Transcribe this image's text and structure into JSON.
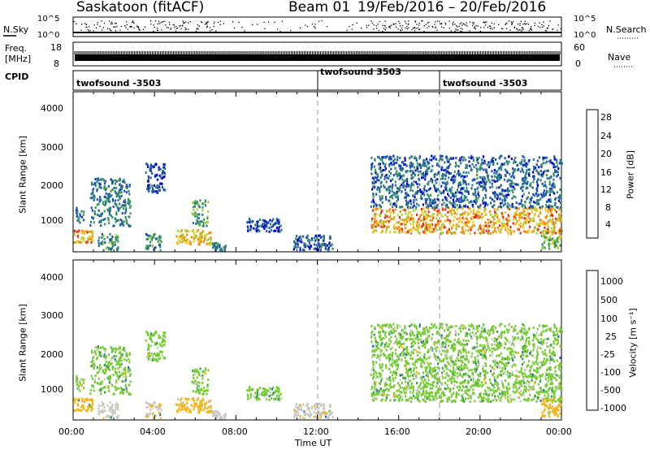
{
  "header": {
    "station": "Saskatoon (fitACF)",
    "beam": "Beam 01",
    "dates": "19/Feb/2016 – 20/Feb/2016"
  },
  "nsky_panel": {
    "left_label": "N.Sky",
    "right_label": "N.Search",
    "left_ticks": [
      "10^5",
      "10^0"
    ],
    "right_ticks": [
      "10^5",
      "10^0"
    ]
  },
  "freq_panel": {
    "left_label_1": "Freq.",
    "left_label_2": "[MHz]",
    "left_ticks": [
      "18",
      "8"
    ],
    "right_label": "Nave",
    "right_ticks": [
      "60",
      "0"
    ]
  },
  "cpid_panel": {
    "label": "CPID",
    "segments": [
      {
        "text": "twofsound -3503",
        "start_hour": 0
      },
      {
        "text": "twofsound 3503",
        "start_hour": 12
      },
      {
        "text": "twofsound -3503",
        "start_hour": 18
      }
    ]
  },
  "power_panel": {
    "ylabel": "Slant Range [km]",
    "yticks": [
      "4000",
      "3000",
      "2000",
      "1000"
    ],
    "colorbar_label": "Power [dB]",
    "colorbar_ticks": [
      "28",
      "24",
      "20",
      "16",
      "12",
      "8",
      "4"
    ],
    "colors": [
      "#0000cc",
      "#1a4fb0",
      "#2e7a8a",
      "#3a9a5a",
      "#9dd33a",
      "#f2c81e",
      "#f08a14",
      "#e8281c"
    ]
  },
  "velocity_panel": {
    "ylabel": "Slant Range [km]",
    "yticks": [
      "4000",
      "3000",
      "2000",
      "1000"
    ],
    "colorbar_label": "Velocity [m s⁻¹]",
    "colorbar_ticks": [
      "1000",
      "500",
      "100",
      "25",
      "-25",
      "-100",
      "-500",
      "-1000"
    ],
    "colors": [
      "#2233aa",
      "#2c6fb0",
      "#3a9a5a",
      "#77cc33",
      "#c8c8c4",
      "#f4b51c",
      "#f08a14",
      "#e0301c"
    ]
  },
  "xaxis": {
    "label": "Time UT",
    "ticks": [
      "00:00",
      "04:00",
      "08:00",
      "12:00",
      "16:00",
      "20:00",
      "00:00"
    ]
  },
  "chart_data": {
    "type": "heatmap",
    "title": "Saskatoon (fitACF) Beam 01 19/Feb/2016 – 20/Feb/2016",
    "xlabel": "Time UT",
    "ylabel": "Slant Range [km]",
    "xlim_hours": [
      0,
      24
    ],
    "ylim_km": [
      180,
      4500
    ],
    "cpid_boundaries_hours": [
      12,
      18
    ],
    "power_scale_db": [
      0,
      32
    ],
    "velocity_scale_ms": [
      -1000,
      1000
    ],
    "echo_regions": [
      {
        "t_start": 0.0,
        "t_end": 1.0,
        "r_start": 450,
        "r_end": 800,
        "power_db": 24,
        "velocity_ms": -150
      },
      {
        "t_start": 0.1,
        "t_end": 0.5,
        "r_start": 1000,
        "r_end": 1400,
        "power_db": 8,
        "velocity_ms": 0
      },
      {
        "t_start": 0.8,
        "t_end": 2.8,
        "r_start": 900,
        "r_end": 2200,
        "power_db": 10,
        "velocity_ms": 0
      },
      {
        "t_start": 1.2,
        "t_end": 2.2,
        "r_start": 250,
        "r_end": 700,
        "power_db": 12,
        "velocity_ms": -60
      },
      {
        "t_start": 3.5,
        "t_end": 4.3,
        "r_start": 250,
        "r_end": 700,
        "power_db": 12,
        "velocity_ms": -80
      },
      {
        "t_start": 3.5,
        "t_end": 4.5,
        "r_start": 1800,
        "r_end": 2600,
        "power_db": 6,
        "velocity_ms": 0
      },
      {
        "t_start": 5.0,
        "t_end": 6.8,
        "r_start": 400,
        "r_end": 800,
        "power_db": 22,
        "velocity_ms": -150
      },
      {
        "t_start": 5.8,
        "t_end": 6.6,
        "r_start": 900,
        "r_end": 1600,
        "power_db": 14,
        "velocity_ms": 0
      },
      {
        "t_start": 6.8,
        "t_end": 7.6,
        "r_start": 250,
        "r_end": 450,
        "power_db": 10,
        "velocity_ms": -60
      },
      {
        "t_start": 8.5,
        "t_end": 10.2,
        "r_start": 750,
        "r_end": 1100,
        "power_db": 6,
        "velocity_ms": 0
      },
      {
        "t_start": 10.8,
        "t_end": 12.8,
        "r_start": 250,
        "r_end": 650,
        "power_db": 8,
        "velocity_ms": -80
      },
      {
        "t_start": 14.6,
        "t_end": 24.0,
        "r_start": 700,
        "r_end": 1400,
        "power_db": 24,
        "velocity_ms": 0
      },
      {
        "t_start": 14.6,
        "t_end": 24.0,
        "r_start": 1400,
        "r_end": 2800,
        "power_db": 8,
        "velocity_ms": 0
      },
      {
        "t_start": 23.0,
        "t_end": 24.0,
        "r_start": 300,
        "r_end": 800,
        "power_db": 16,
        "velocity_ms": -200
      }
    ]
  }
}
